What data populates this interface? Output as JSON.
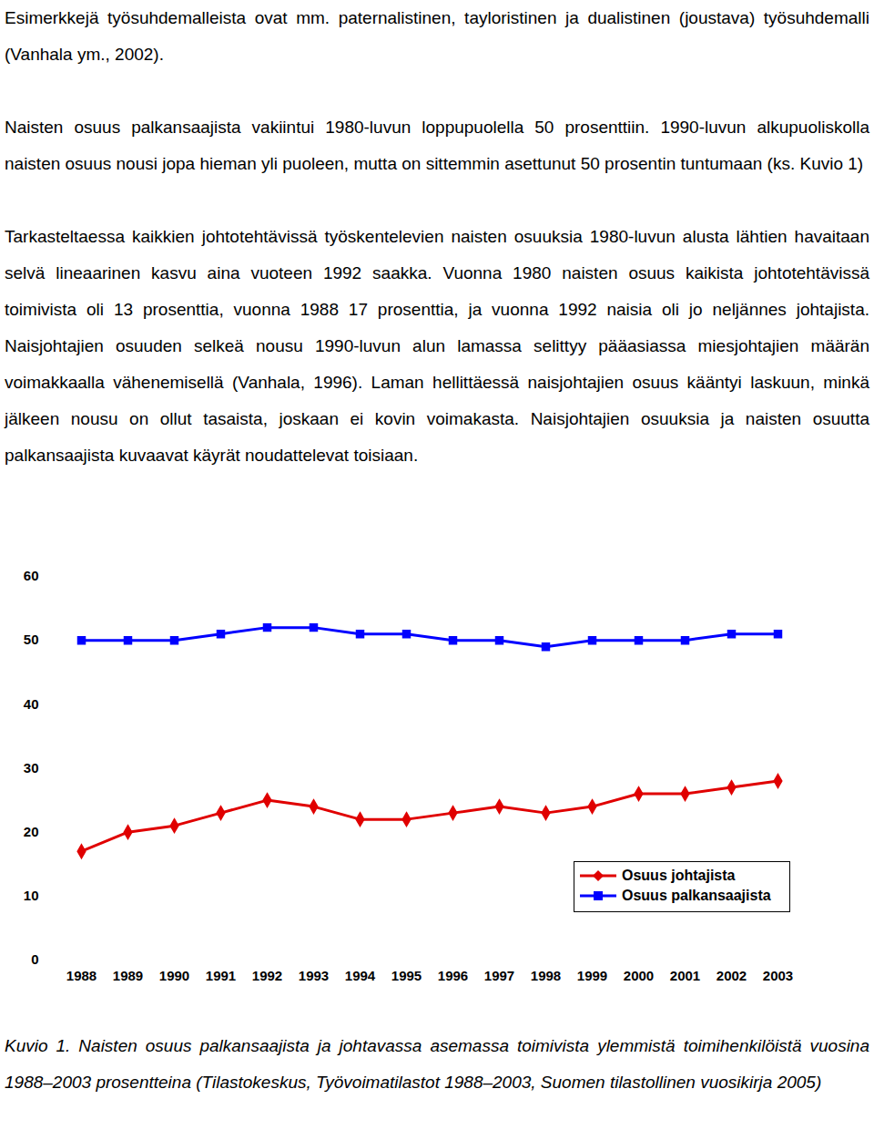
{
  "paragraphs": [
    "Esimerkkejä työsuhdemalleista ovat mm. paternalistinen, tayloristinen ja dualistinen (joustava) työsuhdemalli (Vanhala ym., 2002).",
    "Naisten osuus palkansaajista vakiintui 1980-luvun loppupuolella 50 prosenttiin. 1990-luvun alkupuoliskolla naisten osuus nousi jopa hieman yli puoleen, mutta on sittemmin asettunut 50 prosentin tuntumaan (ks. Kuvio 1)",
    "Tarkasteltaessa kaikkien johtotehtävissä työskentelevien naisten osuuksia 1980-luvun alusta lähtien havaitaan selvä lineaarinen kasvu aina vuoteen 1992 saakka. Vuonna 1980 naisten osuus kaikista johtotehtävissä toimivista oli 13 prosenttia, vuonna 1988 17 prosenttia, ja vuonna 1992 naisia oli jo neljännes johtajista. Naisjohtajien osuuden selkeä nousu 1990-luvun alun lamassa selittyy pääasiassa miesjohtajien määrän voimakkaalla vähenemisellä (Vanhala, 1996). Laman hellittäessä naisjohtajien osuus kääntyi laskuun, minkä jälkeen nousu on ollut tasaista, joskaan ei kovin voimakasta. Naisjohtajien osuuksia ja naisten osuutta palkansaajista kuvaavat käyrät noudattelevat toisiaan."
  ],
  "chart_data": {
    "type": "line",
    "categories": [
      "1988",
      "1989",
      "1990",
      "1991",
      "1992",
      "1993",
      "1994",
      "1995",
      "1996",
      "1997",
      "1998",
      "1999",
      "2000",
      "2001",
      "2002",
      "2003"
    ],
    "series": [
      {
        "name": "Osuus johtajista",
        "color": "#e00000",
        "marker": "diamond",
        "values": [
          17,
          20,
          21,
          23,
          25,
          24,
          22,
          22,
          23,
          24,
          23,
          24,
          26,
          26,
          27,
          28
        ]
      },
      {
        "name": "Osuus palkansaajista",
        "color": "#0000ff",
        "marker": "square",
        "values": [
          50,
          50,
          50,
          51,
          52,
          52,
          51,
          51,
          50,
          50,
          49,
          50,
          50,
          50,
          51,
          51
        ]
      }
    ],
    "ylim": [
      0,
      60
    ],
    "yticks": [
      0,
      10,
      20,
      30,
      40,
      50,
      60
    ],
    "grid": false,
    "legend": "bottom-right"
  },
  "caption": "Kuvio 1. Naisten osuus palkansaajista ja johtavassa asemassa toimivista ylemmistä toimihenkilöistä vuosina 1988–2003 prosentteina (Tilastokeskus, Työvoimatilastot 1988–2003, Suomen tilastollinen vuosikirja 2005)"
}
